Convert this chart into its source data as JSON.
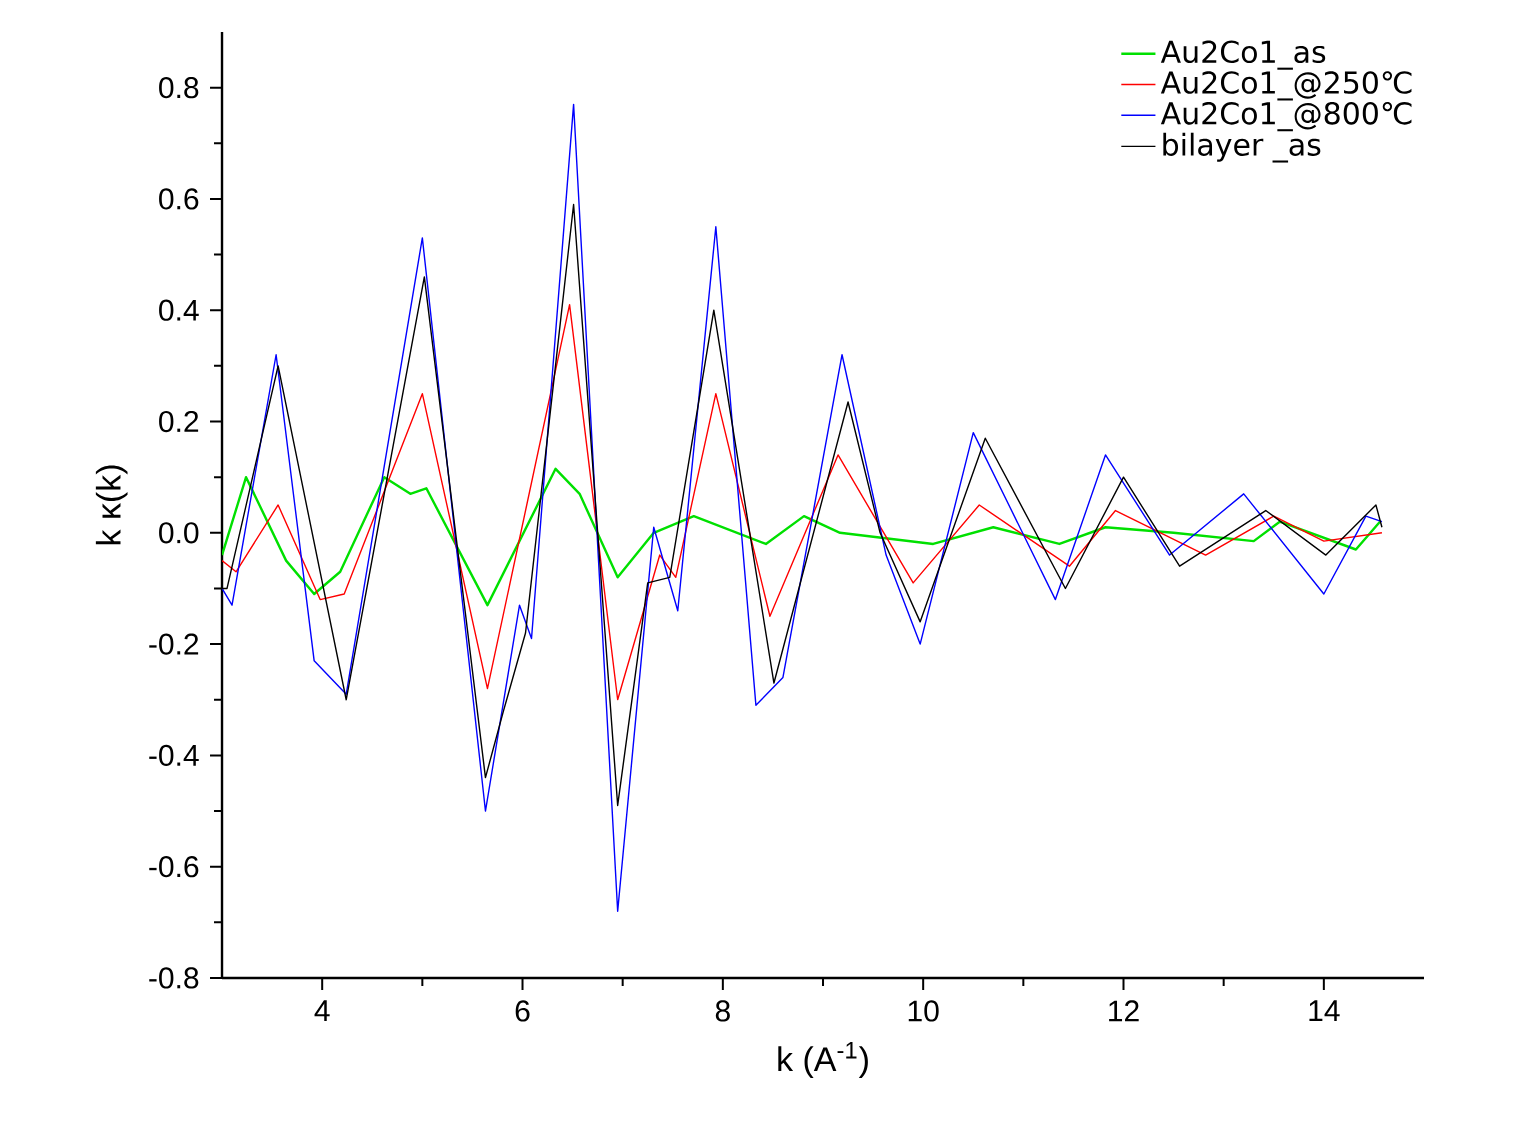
{
  "chart_data": {
    "type": "line",
    "xlabel": "k (A$^{-1}$)",
    "ylabel": "k κ(k)",
    "xlim": [
      3,
      15
    ],
    "ylim": [
      -0.8,
      0.9
    ],
    "xticks": [
      4,
      6,
      8,
      10,
      12,
      14
    ],
    "yticks": [
      {
        "value": -0.8,
        "label": "-0.8"
      },
      {
        "value": -0.6,
        "label": "-0.6"
      },
      {
        "value": -0.4,
        "label": "-0.4"
      },
      {
        "value": -0.2,
        "label": "-0.2"
      },
      {
        "value": 0,
        "label": "0.0"
      },
      {
        "value": 0.2,
        "label": "0.2"
      },
      {
        "value": 0.4,
        "label": "0.4"
      },
      {
        "value": 0.6,
        "label": "0.6"
      },
      {
        "value": 0.8,
        "label": "0.8"
      }
    ],
    "legend": "top right",
    "line_style": "solid",
    "series": [
      {
        "name": "Au2Co1_as",
        "color": "#00e000",
        "x": [
          3.0,
          3.24,
          3.64,
          3.92,
          4.18,
          4.62,
          4.88,
          5.04,
          5.65,
          6.33,
          6.57,
          6.95,
          7.31,
          7.71,
          8.43,
          8.81,
          9.17,
          10.1,
          10.7,
          11.36,
          11.82,
          12.5,
          13.3,
          13.56,
          14.32,
          14.56
        ],
        "values": [
          -0.04,
          0.1,
          -0.05,
          -0.11,
          -0.07,
          0.1,
          0.07,
          0.08,
          -0.13,
          0.115,
          0.07,
          -0.08,
          0.0,
          0.03,
          -0.02,
          0.03,
          0.0,
          -0.02,
          0.01,
          -0.02,
          0.01,
          0.0,
          -0.015,
          0.02,
          -0.03,
          0.02
        ]
      },
      {
        "name": "Au2Co1_@250℃",
        "color": "#ff0000",
        "x": [
          3.0,
          3.14,
          3.56,
          3.98,
          4.22,
          5.0,
          5.65,
          6.47,
          6.95,
          7.37,
          7.53,
          7.93,
          8.47,
          9.15,
          9.9,
          10.56,
          11.46,
          11.92,
          12.82,
          13.5,
          14.0,
          14.58
        ],
        "values": [
          -0.05,
          -0.07,
          0.05,
          -0.12,
          -0.11,
          0.25,
          -0.28,
          0.41,
          -0.3,
          -0.04,
          -0.08,
          0.25,
          -0.15,
          0.14,
          -0.09,
          0.05,
          -0.06,
          0.04,
          -0.04,
          0.03,
          -0.015,
          0.0
        ]
      },
      {
        "name": "Au2Co1_@800℃",
        "color": "#0000ff",
        "x": [
          3.0,
          3.1,
          3.54,
          3.92,
          4.24,
          5.0,
          5.63,
          5.97,
          6.09,
          6.51,
          6.95,
          7.31,
          7.55,
          7.93,
          8.33,
          8.6,
          9.19,
          9.63,
          9.97,
          10.5,
          11.32,
          11.82,
          12.46,
          13.2,
          14.0,
          14.42,
          14.58
        ],
        "values": [
          -0.1,
          -0.13,
          0.32,
          -0.23,
          -0.29,
          0.53,
          -0.5,
          -0.13,
          -0.19,
          0.77,
          -0.68,
          0.01,
          -0.14,
          0.55,
          -0.31,
          -0.26,
          0.32,
          -0.04,
          -0.2,
          0.18,
          -0.12,
          0.14,
          -0.04,
          0.07,
          -0.11,
          0.03,
          0.02
        ]
      },
      {
        "name": "bilayer _as",
        "color": "#000000",
        "x": [
          3.0,
          3.05,
          3.56,
          4.24,
          5.02,
          5.63,
          5.81,
          6.03,
          6.51,
          6.95,
          7.25,
          7.47,
          7.91,
          8.51,
          9.25,
          9.57,
          9.97,
          10.62,
          11.42,
          12.0,
          12.56,
          13.42,
          14.02,
          14.52,
          14.58
        ],
        "values": [
          -0.1,
          -0.1,
          0.3,
          -0.3,
          0.46,
          -0.44,
          -0.32,
          -0.18,
          0.59,
          -0.49,
          -0.09,
          -0.08,
          0.4,
          -0.27,
          0.235,
          0.0,
          -0.16,
          0.17,
          -0.1,
          0.1,
          -0.06,
          0.04,
          -0.04,
          0.05,
          0.01
        ]
      }
    ]
  }
}
